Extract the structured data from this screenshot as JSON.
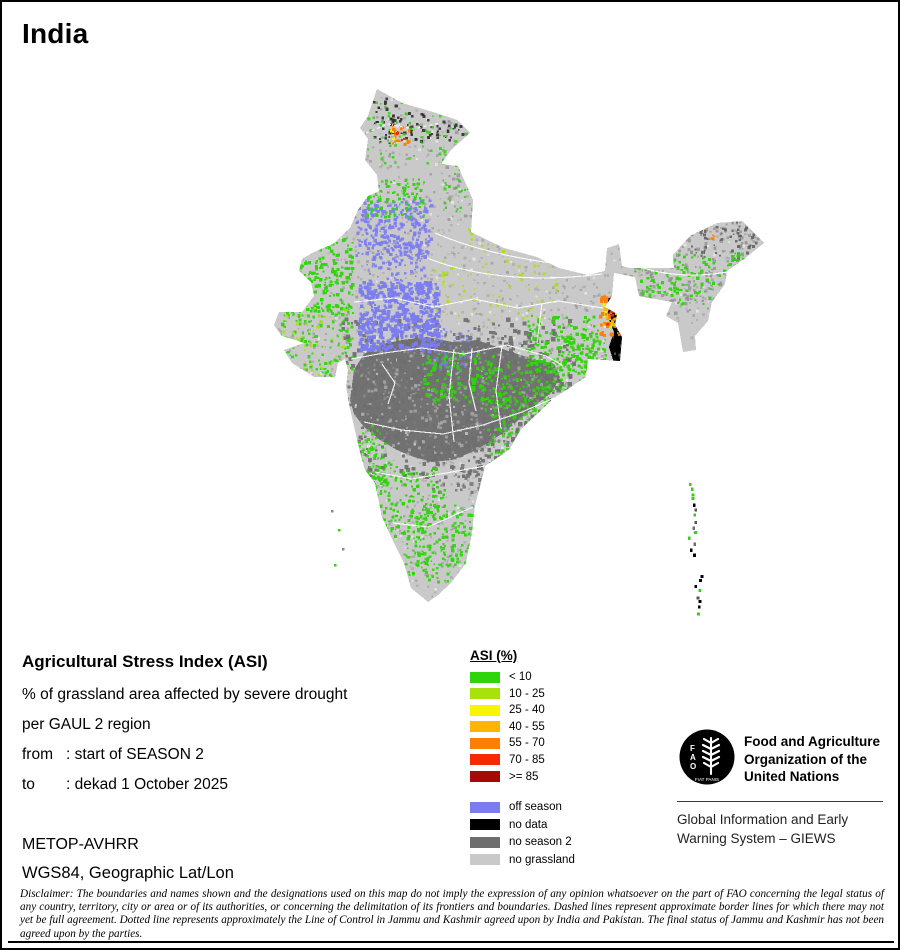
{
  "page": {
    "title": "India"
  },
  "info": {
    "heading": "Agricultural Stress Index (ASI)",
    "subtitle_line1": "% of grassland area affected by severe drought",
    "subtitle_line2": "per GAUL 2 region",
    "from_label": "from",
    "from_value": ": start of SEASON 2",
    "to_label": "to",
    "to_value": ": dekad 1 October 2025",
    "sensor": "METOP-AVHRR",
    "projection": "WGS84, Geographic Lat/Lon"
  },
  "legend": {
    "title": "ASI (%)",
    "asi_classes": [
      {
        "label": "< 10",
        "color": "#2fd40a"
      },
      {
        "label": "10 - 25",
        "color": "#a8e10c"
      },
      {
        "label": "25 - 40",
        "color": "#f8f503"
      },
      {
        "label": "40 - 55",
        "color": "#ffb403"
      },
      {
        "label": "55 - 70",
        "color": "#ff7e03"
      },
      {
        "label": "70 - 85",
        "color": "#f32a04"
      },
      {
        "label": ">= 85",
        "color": "#a50b03"
      }
    ],
    "other_classes": [
      {
        "label": "off season",
        "color": "#7b7cf0"
      },
      {
        "label": "no data",
        "color": "#000000"
      },
      {
        "label": "no season 2",
        "color": "#6e6e6e"
      },
      {
        "label": "no grassland",
        "color": "#c9c9c9"
      }
    ]
  },
  "branding": {
    "fao_letters": [
      "F",
      "A",
      "O"
    ],
    "fao_motto": "FIAT PANIS",
    "org_name_lines": [
      "Food and Agriculture",
      "Organization of the",
      "United Nations"
    ],
    "giews_lines": [
      "Global Information and Early",
      "Warning System – GIEWS"
    ]
  },
  "disclaimer": "Disclaimer: The boundaries and names shown and the designations used on this map do not imply the expression of any opinion whatsoever on the part of FAO concerning the legal status of any country, territory, city or area or of its authorities, or concerning the delimitation of its frontiers and boundaries. Dashed lines represent approximate border lines for which there may not yet be full agreement. Dotted line represents approximately the Line of Control in Jammu and Kashmir agreed upon by India and Pakistan. The final status of Jammu and Kashmir has not been agreed upon by the parties."
}
